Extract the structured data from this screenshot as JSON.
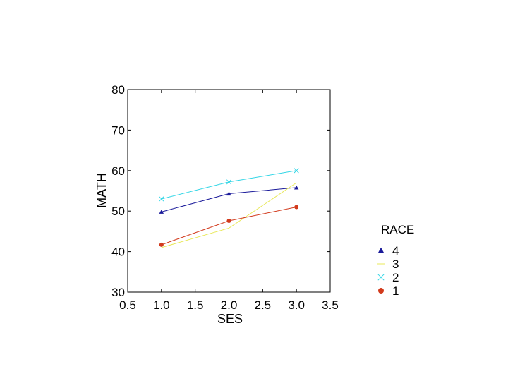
{
  "chart_data": {
    "type": "line",
    "title": "",
    "xlabel": "SES",
    "ylabel": "MATH",
    "xlim": [
      0.5,
      3.5
    ],
    "ylim": [
      30,
      80
    ],
    "x_ticks": [
      "0.5",
      "1.0",
      "1.5",
      "2.0",
      "2.5",
      "3.0",
      "3.5"
    ],
    "y_ticks": [
      "30",
      "40",
      "50",
      "60",
      "70",
      "80"
    ],
    "grid": false,
    "legend_position": "right",
    "legend_title": "RACE",
    "x": [
      1.0,
      2.0,
      3.0
    ],
    "series": [
      {
        "name": "4",
        "values": [
          49.8,
          54.3,
          55.8
        ],
        "color": "#1a1a9a",
        "marker": "triangle"
      },
      {
        "name": "3",
        "values": [
          41.0,
          45.8,
          57.0
        ],
        "color": "#e8e85a",
        "marker": "none"
      },
      {
        "name": "2",
        "values": [
          53.0,
          57.2,
          60.0
        ],
        "color": "#33d6e6",
        "marker": "x"
      },
      {
        "name": "1",
        "values": [
          41.7,
          47.6,
          51.0
        ],
        "color": "#d23a1c",
        "marker": "circle"
      }
    ]
  }
}
